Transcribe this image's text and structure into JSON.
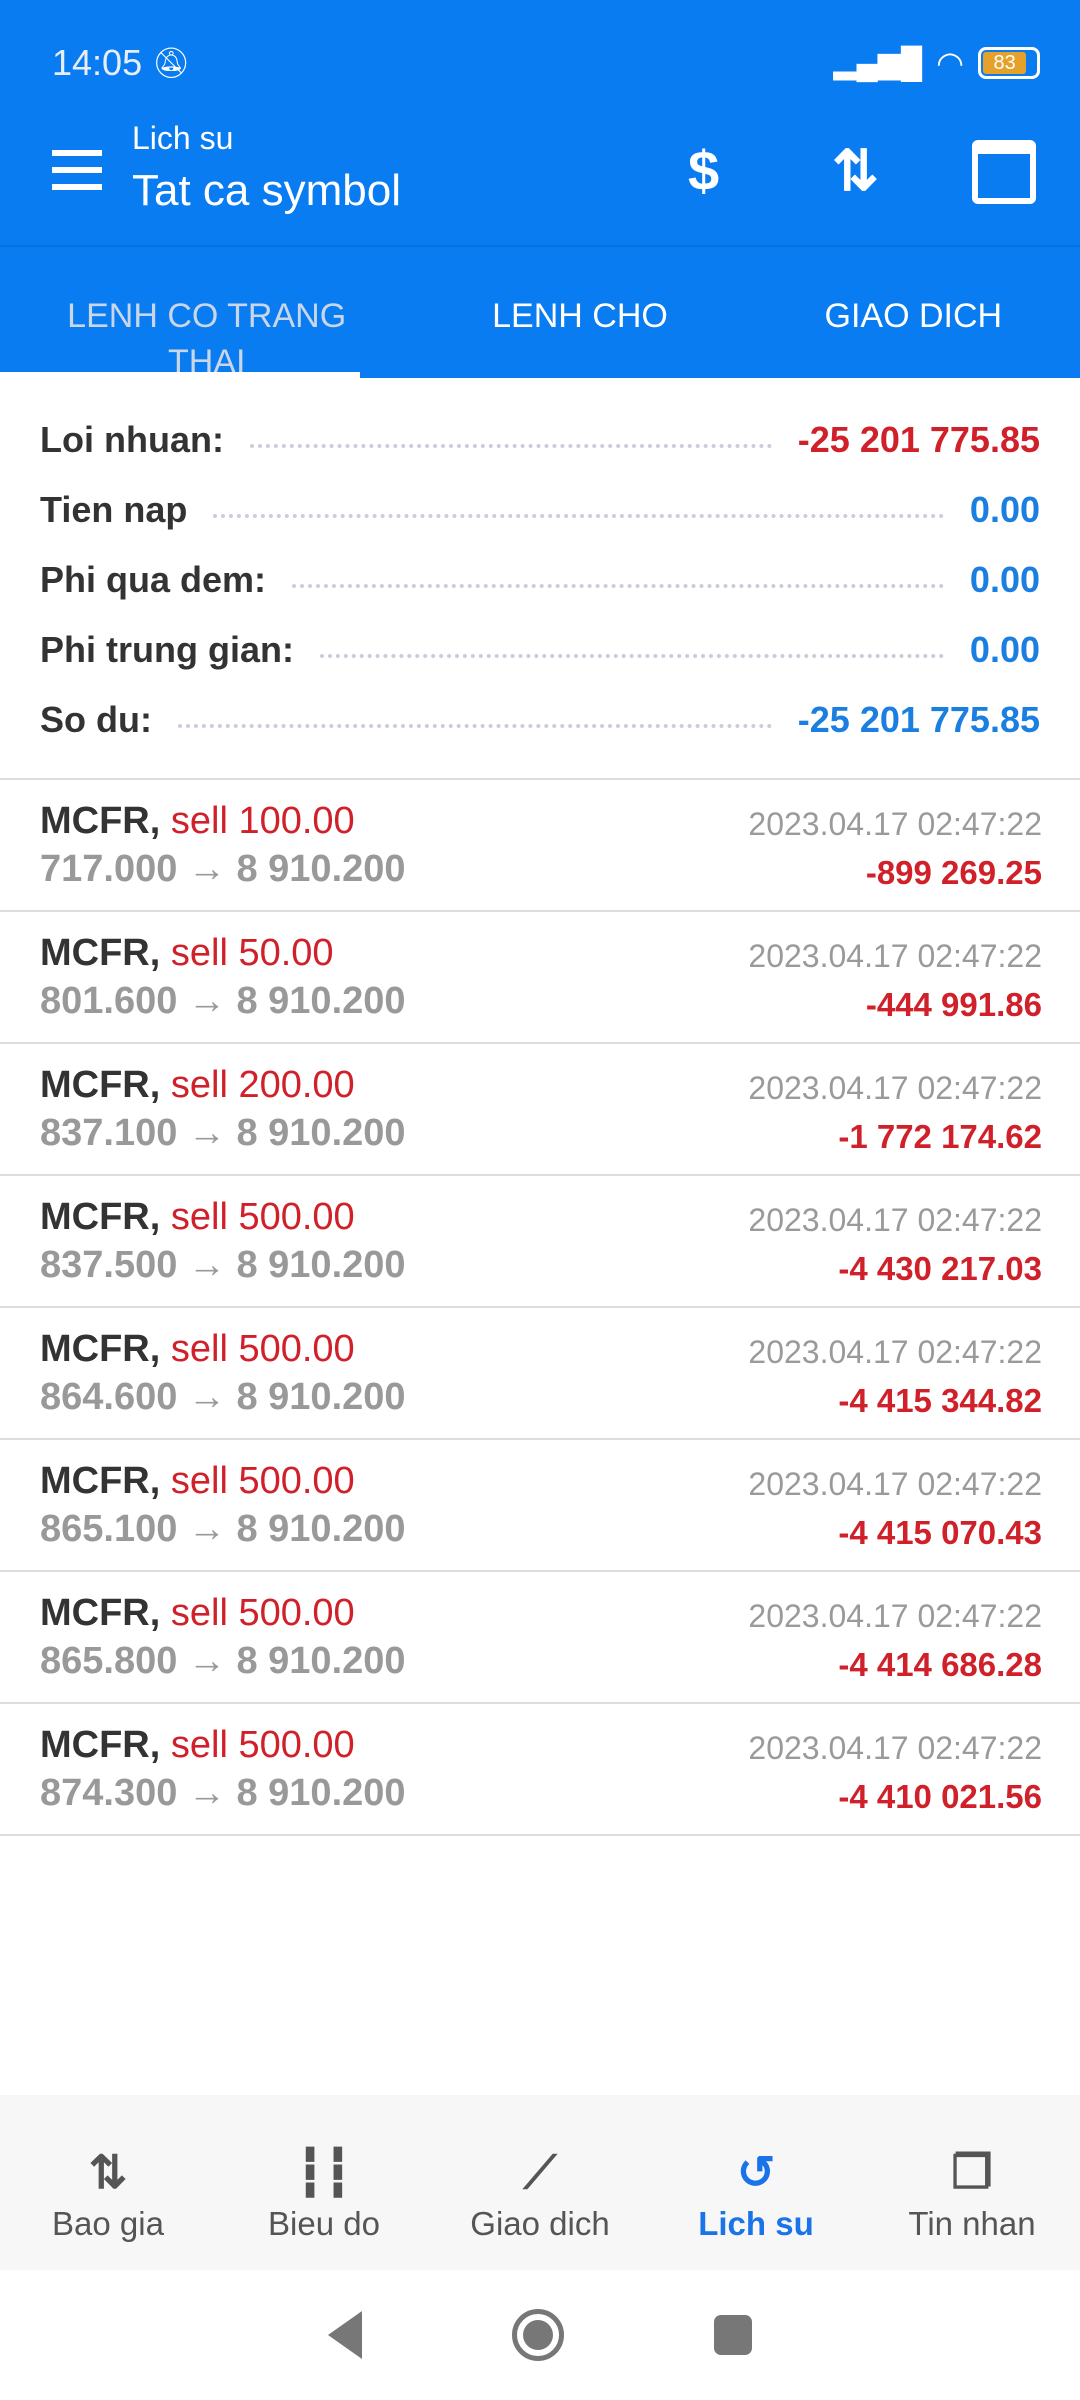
{
  "status_bar": {
    "time": "14:05",
    "battery": "83"
  },
  "header": {
    "subtitle": "Lich su",
    "title": "Tat ca symbol"
  },
  "tabs": [
    {
      "label": "LENH CO TRANG THAI"
    },
    {
      "label": "LENH CHO"
    },
    {
      "label": "GIAO DICH"
    }
  ],
  "summary": [
    {
      "label": "Loi nhuan:",
      "value": "-25 201 775.85",
      "color": "#d0202a"
    },
    {
      "label": "Tien nap",
      "value": "0.00",
      "color": "#1a7fe0"
    },
    {
      "label": "Phi qua dem:",
      "value": "0.00",
      "color": "#1a7fe0"
    },
    {
      "label": "Phi trung gian:",
      "value": "0.00",
      "color": "#1a7fe0"
    },
    {
      "label": "So du:",
      "value": "-25 201 775.85",
      "color": "#1a7fe0"
    }
  ],
  "trades": [
    {
      "symbol": "MCFR,",
      "side": "sell 100.00",
      "prices": "717.000 → 8 910.200",
      "time": "2023.04.17 02:47:22",
      "profit": "-899 269.25"
    },
    {
      "symbol": "MCFR,",
      "side": "sell 50.00",
      "prices": "801.600 → 8 910.200",
      "time": "2023.04.17 02:47:22",
      "profit": "-444 991.86"
    },
    {
      "symbol": "MCFR,",
      "side": "sell 200.00",
      "prices": "837.100 → 8 910.200",
      "time": "2023.04.17 02:47:22",
      "profit": "-1 772 174.62"
    },
    {
      "symbol": "MCFR,",
      "side": "sell 500.00",
      "prices": "837.500 → 8 910.200",
      "time": "2023.04.17 02:47:22",
      "profit": "-4 430 217.03"
    },
    {
      "symbol": "MCFR,",
      "side": "sell 500.00",
      "prices": "864.600 → 8 910.200",
      "time": "2023.04.17 02:47:22",
      "profit": "-4 415 344.82"
    },
    {
      "symbol": "MCFR,",
      "side": "sell 500.00",
      "prices": "865.100 → 8 910.200",
      "time": "2023.04.17 02:47:22",
      "profit": "-4 415 070.43"
    },
    {
      "symbol": "MCFR,",
      "side": "sell 500.00",
      "prices": "865.800 → 8 910.200",
      "time": "2023.04.17 02:47:22",
      "profit": "-4 414 686.28"
    },
    {
      "symbol": "MCFR,",
      "side": "sell 500.00",
      "prices": "874.300 → 8 910.200",
      "time": "2023.04.17 02:47:22",
      "profit": "-4 410 021.56"
    }
  ],
  "bottom_nav": [
    {
      "label": "Bao gia",
      "icon": "arrows-up-down-icon"
    },
    {
      "label": "Bieu do",
      "icon": "candlestick-icon"
    },
    {
      "label": "Giao dich",
      "icon": "trend-line-icon"
    },
    {
      "label": "Lich su",
      "icon": "history-icon",
      "active": true
    },
    {
      "label": "Tin nhan",
      "icon": "chat-icon"
    }
  ],
  "colors": {
    "primary": "#0a7cf2",
    "loss": "#d0202a",
    "active_nav": "#1a73e8"
  }
}
